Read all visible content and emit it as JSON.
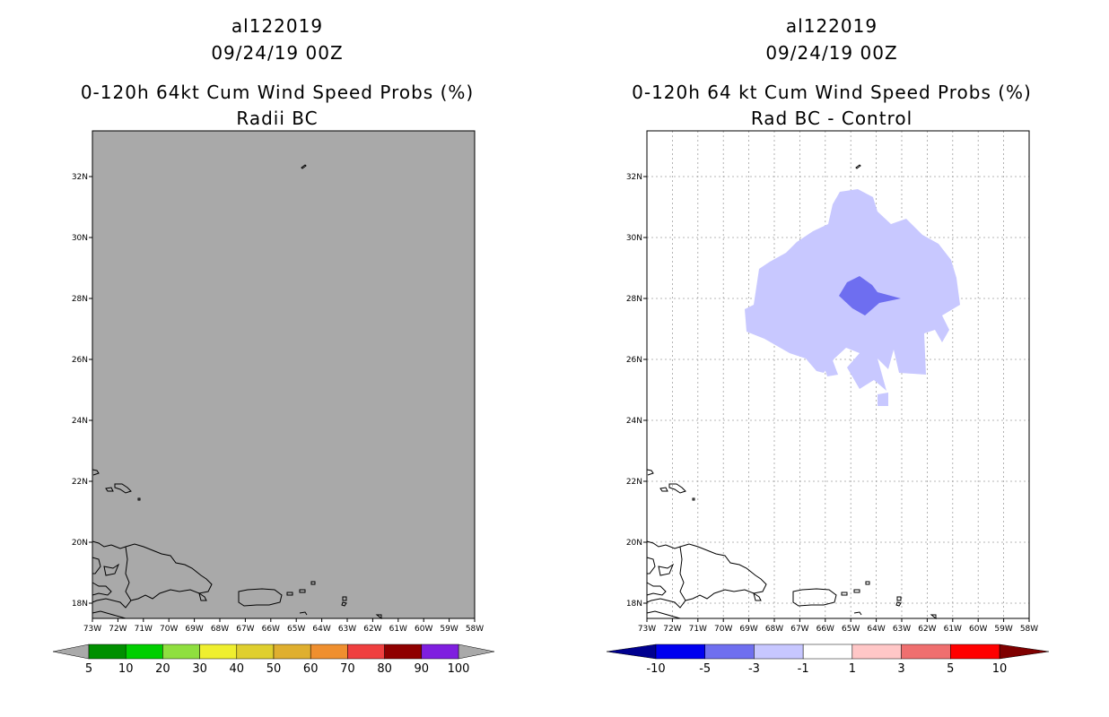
{
  "panels": [
    {
      "storm_id": "al122019",
      "datetime": "09/24/19 00Z",
      "product": "0-120h 64kt Cum Wind Speed Probs (%)",
      "subtitle": "Radii BC",
      "fill_color": "#a9a9a9",
      "colorbar": {
        "labels": [
          "5",
          "10",
          "20",
          "30",
          "40",
          "50",
          "60",
          "70",
          "80",
          "90",
          "100"
        ],
        "colors": [
          "#008f00",
          "#00cf00",
          "#8fdf3f",
          "#efef2f",
          "#dfcf2f",
          "#dfaf2f",
          "#ef8f2f",
          "#ef3f3f",
          "#8f0000",
          "#7f1fdf"
        ],
        "under_color": "#a9a9a9",
        "over_color": "#a9a9a9"
      }
    },
    {
      "storm_id": "al122019",
      "datetime": "09/24/19 00Z",
      "product": "0-120h 64 kt Cum Wind Speed Probs (%)",
      "subtitle": "Rad BC - Control",
      "contour_colors": {
        "light": "#c8c8ff",
        "dark": "#6e6ef0"
      },
      "colorbar": {
        "labels": [
          "-10",
          "-5",
          "-3",
          "-1",
          "1",
          "3",
          "5",
          "10"
        ],
        "colors": [
          "#0000ef",
          "#6f6fef",
          "#c7c7ff",
          "#ffffff",
          "#ffc7c7",
          "#ef6f6f",
          "#ff0000"
        ],
        "under_color": "#00008f",
        "over_color": "#7f0000"
      }
    }
  ],
  "map": {
    "lon_labels": [
      "73W",
      "72W",
      "71W",
      "70W",
      "69W",
      "68W",
      "67W",
      "66W",
      "65W",
      "64W",
      "63W",
      "62W",
      "61W",
      "60W",
      "59W",
      "58W"
    ],
    "lat_labels": [
      "18N",
      "20N",
      "22N",
      "24N",
      "26N",
      "28N",
      "30N",
      "32N"
    ],
    "lon_range": [
      -73,
      -58
    ],
    "lat_range": [
      17.5,
      33.5
    ]
  }
}
